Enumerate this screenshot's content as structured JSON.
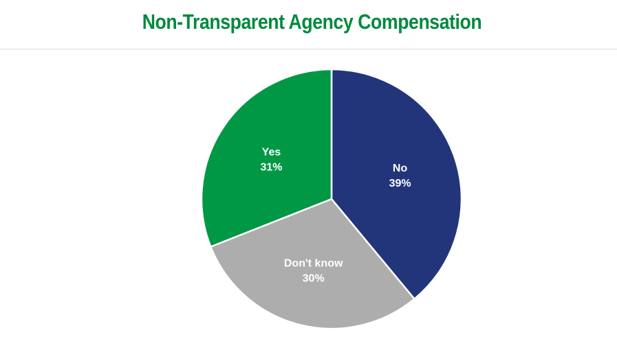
{
  "colors": {
    "title": "#008a3e",
    "divider": "#d9d9d9",
    "slice_border": "#ffffff"
  },
  "chart_data": {
    "type": "pie",
    "title": "Non-Transparent Agency Compensation",
    "start_angle_deg": 0,
    "direction": "clockwise",
    "slices": [
      {
        "label": "No",
        "value": 39,
        "value_label": "39%",
        "color": "#22357a"
      },
      {
        "label": "Don't know",
        "value": 30,
        "value_label": "30%",
        "color": "#adadad"
      },
      {
        "label": "Yes",
        "value": 31,
        "value_label": "31%",
        "color": "#009845"
      }
    ]
  }
}
